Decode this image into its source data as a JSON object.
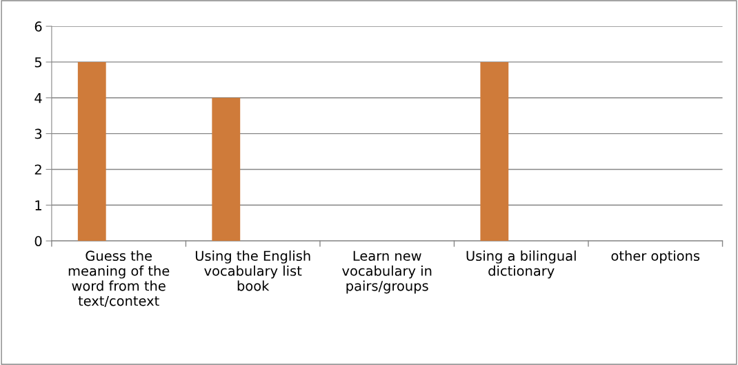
{
  "chart_data": {
    "type": "bar",
    "categories": [
      "Guess the\nmeaning of the\nword from the\ntext/context",
      "Using the English\nvocabulary list\nbook",
      "Learn new\nvocabulary in\npairs/groups",
      "Using a bilingual\ndictionary",
      "other options"
    ],
    "values": [
      5,
      4,
      0,
      5,
      0
    ],
    "color": "#cf7b3a",
    "ylim": [
      0,
      6
    ],
    "yticks": [
      0,
      1,
      2,
      3,
      4,
      5,
      6
    ],
    "grid": "y"
  }
}
